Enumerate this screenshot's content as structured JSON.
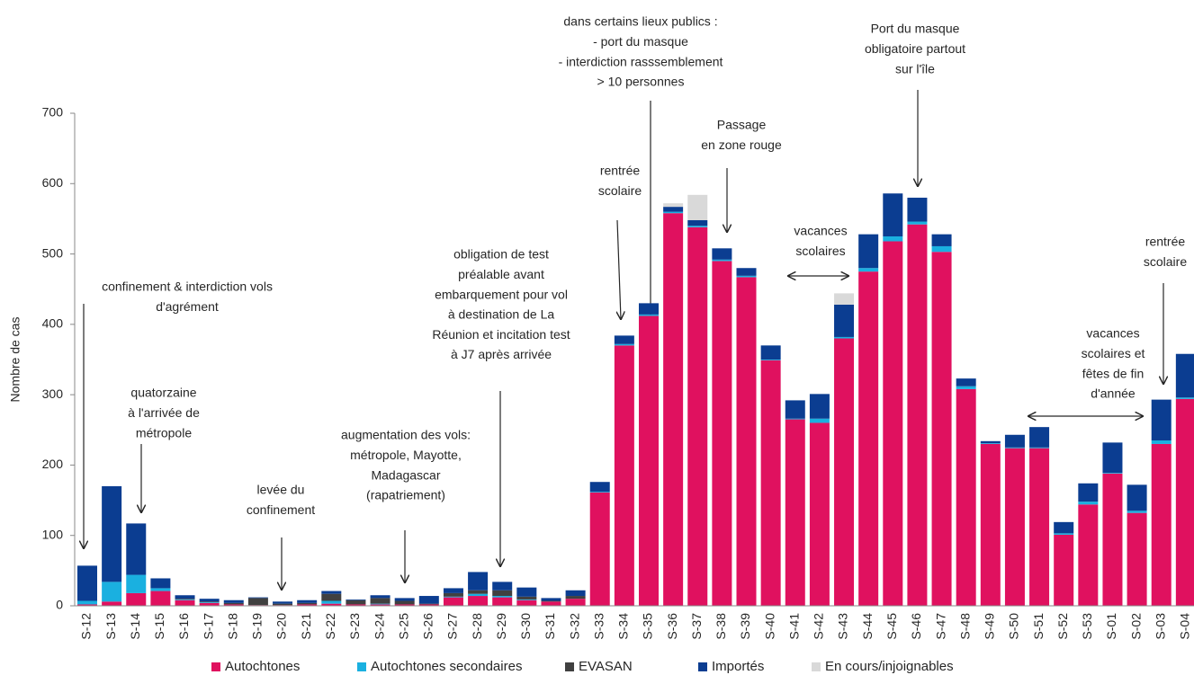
{
  "chart_data": {
    "type": "stacked-bar",
    "y_label": "Nombre de cas",
    "categories": [
      "S-12",
      "S-13",
      "S-14",
      "S-15",
      "S-16",
      "S-17",
      "S-18",
      "S-19",
      "S-20",
      "S-21",
      "S-22",
      "S-23",
      "S-24",
      "S-25",
      "S-26",
      "S-27",
      "S-28",
      "S-29",
      "S-30",
      "S-31",
      "S-32",
      "S-33",
      "S-34",
      "S-35",
      "S-36",
      "S-37",
      "S-38",
      "S-39",
      "S-40",
      "S-41",
      "S-42",
      "S-43",
      "S-44",
      "S-45",
      "S-46",
      "S-47",
      "S-48",
      "S-49",
      "S-50",
      "S-51",
      "S-52",
      "S-53",
      "S-01",
      "S-02",
      "S-03",
      "S-04"
    ],
    "series": [
      {
        "name": "Autochtones",
        "color": "#e0115f",
        "values": [
          2,
          6,
          18,
          21,
          8,
          4,
          2,
          1,
          1,
          2,
          3,
          2,
          2,
          2,
          2,
          12,
          14,
          12,
          8,
          6,
          10,
          161,
          370,
          412,
          558,
          538,
          490,
          467,
          349,
          265,
          260,
          380,
          475,
          518,
          542,
          503,
          308,
          230,
          224,
          224,
          101,
          144,
          188,
          132,
          230,
          294
        ]
      },
      {
        "name": "Autochtones secondaires",
        "color": "#1ab0e0",
        "values": [
          5,
          28,
          26,
          4,
          1,
          1,
          0,
          0,
          0,
          0,
          4,
          0,
          1,
          0,
          0,
          1,
          3,
          2,
          1,
          0,
          0,
          1,
          2,
          2,
          2,
          2,
          2,
          2,
          1,
          1,
          6,
          2,
          5,
          7,
          4,
          8,
          4,
          1,
          1,
          1,
          2,
          4,
          1,
          3,
          5,
          2
        ]
      },
      {
        "name": "EVASAN",
        "color": "#404040",
        "values": [
          0,
          0,
          0,
          0,
          1,
          1,
          2,
          10,
          2,
          2,
          10,
          6,
          8,
          5,
          1,
          5,
          5,
          8,
          4,
          1,
          4,
          0,
          0,
          0,
          0,
          0,
          0,
          0,
          0,
          0,
          0,
          0,
          0,
          0,
          0,
          0,
          0,
          0,
          0,
          0,
          0,
          0,
          0,
          0,
          0,
          0
        ]
      },
      {
        "name": "Importés",
        "color": "#0b3d91",
        "values": [
          50,
          136,
          73,
          14,
          5,
          4,
          4,
          1,
          3,
          4,
          4,
          1,
          4,
          4,
          11,
          7,
          26,
          12,
          13,
          4,
          8,
          14,
          12,
          16,
          7,
          8,
          16,
          11,
          20,
          26,
          35,
          46,
          48,
          61,
          34,
          17,
          11,
          3,
          18,
          29,
          16,
          26,
          43,
          37,
          58,
          62
        ]
      },
      {
        "name": "En cours/injoignables",
        "color": "#d9d9d9",
        "values": [
          0,
          0,
          0,
          0,
          0,
          0,
          0,
          0,
          0,
          0,
          0,
          0,
          0,
          0,
          0,
          0,
          0,
          0,
          0,
          0,
          0,
          0,
          0,
          0,
          5,
          36,
          0,
          0,
          0,
          0,
          0,
          16,
          0,
          0,
          0,
          0,
          0,
          0,
          0,
          0,
          0,
          0,
          0,
          0,
          0,
          0
        ]
      }
    ],
    "ylim": [
      0,
      700
    ],
    "yticks": [
      0,
      100,
      200,
      300,
      400,
      500,
      600,
      700
    ],
    "grid": false,
    "legend": "bottom",
    "annotations": [
      {
        "lines": [
          "confinement &  interdiction vols",
          "d'agrément"
        ]
      },
      {
        "lines": [
          "quatorzaine",
          "à l'arrivée de",
          "métropole"
        ]
      },
      {
        "lines": [
          "levée du",
          "confinement"
        ]
      },
      {
        "lines": [
          "augmentation des vols:",
          "métropole, Mayotte,",
          "Madagascar",
          "(rapatriement)"
        ]
      },
      {
        "lines": [
          "obligation  de test",
          "préalable avant",
          "embarquement pour vol",
          "à destination de La",
          "Réunion et incitation test",
          "à J7 après arrivée"
        ]
      },
      {
        "lines": [
          "rentrée",
          "scolaire"
        ]
      },
      {
        "lines": [
          "dans certains lieux publics :",
          "- port du masque",
          "- interdiction rasssemblement",
          "> 10 personnes"
        ]
      },
      {
        "lines": [
          "Passage",
          "en zone rouge"
        ]
      },
      {
        "lines": [
          "vacances",
          "scolaires"
        ]
      },
      {
        "lines": [
          "Port du masque",
          "obligatoire partout",
          "sur l'île"
        ]
      },
      {
        "lines": [
          "rentrée",
          "scolaire"
        ]
      },
      {
        "lines": [
          "vacances",
          "scolaires et",
          "fêtes de fin",
          "d'année"
        ]
      }
    ]
  }
}
